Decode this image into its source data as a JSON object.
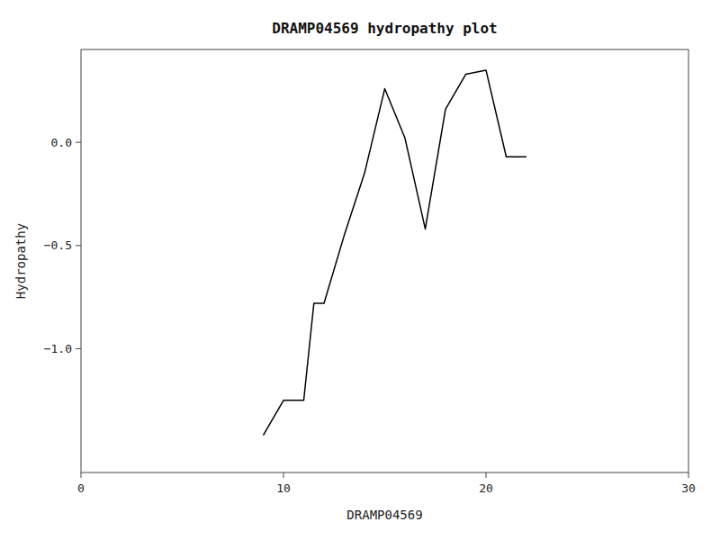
{
  "chart_data": {
    "type": "line",
    "title": "DRAMP04569 hydropathy plot",
    "xlabel": "DRAMP04569",
    "ylabel": "Hydropathy",
    "x": [
      9.0,
      10.0,
      11.0,
      11.5,
      12.0,
      13.0,
      14.0,
      15.0,
      16.0,
      17.0,
      18.0,
      19.0,
      20.0,
      21.0,
      22.0
    ],
    "values": [
      -1.42,
      -1.25,
      -1.25,
      -0.78,
      -0.78,
      -0.45,
      -0.15,
      0.26,
      0.02,
      -0.42,
      0.16,
      0.33,
      0.35,
      -0.07,
      -0.07
    ],
    "color": "black",
    "xlim": [
      0,
      30
    ],
    "ylim": [
      -1.6,
      0.45
    ],
    "xticks": [
      0,
      10,
      20,
      30
    ],
    "yticks": [
      {
        "value": -1.0,
        "label": "−1.0"
      },
      {
        "value": -0.5,
        "label": "−0.5"
      },
      {
        "value": 0.0,
        "label": "0.0"
      }
    ],
    "grid": false
  }
}
